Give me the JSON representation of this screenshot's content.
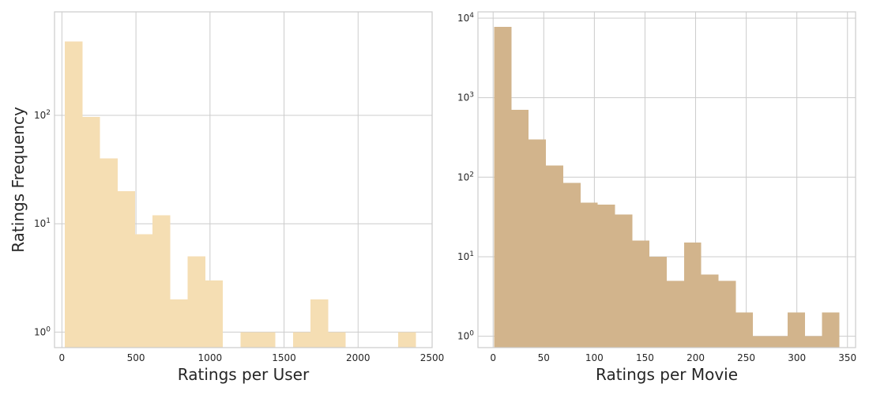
{
  "chart_data": [
    {
      "type": "bar",
      "subtype": "histogram",
      "xlabel": "Ratings per User",
      "ylabel": "Ratings Frequency",
      "yscale": "log",
      "xlim": [
        -50,
        2500
      ],
      "ylim": [
        0.72,
        900
      ],
      "grid": true,
      "color": "#f5deb3",
      "xticks": [
        0,
        500,
        1000,
        1500,
        2000,
        2500
      ],
      "yticks": [
        {
          "value": 1,
          "label_base": "10",
          "label_exp": "0"
        },
        {
          "value": 10,
          "label_base": "10",
          "label_exp": "1"
        },
        {
          "value": 100,
          "label_base": "10",
          "label_exp": "2"
        }
      ],
      "bins": [
        {
          "x0": 20,
          "x1": 138.5,
          "count": 480
        },
        {
          "x0": 138.5,
          "x1": 257,
          "count": 97
        },
        {
          "x0": 257,
          "x1": 375.5,
          "count": 40
        },
        {
          "x0": 375.5,
          "x1": 494,
          "count": 20
        },
        {
          "x0": 494,
          "x1": 612.5,
          "count": 8
        },
        {
          "x0": 612.5,
          "x1": 731,
          "count": 12
        },
        {
          "x0": 731,
          "x1": 849.5,
          "count": 2
        },
        {
          "x0": 849.5,
          "x1": 968,
          "count": 5
        },
        {
          "x0": 968,
          "x1": 1086.5,
          "count": 3
        },
        {
          "x0": 1086.5,
          "x1": 1205,
          "count": 0
        },
        {
          "x0": 1205,
          "x1": 1323.5,
          "count": 1
        },
        {
          "x0": 1323.5,
          "x1": 1442,
          "count": 1
        },
        {
          "x0": 1442,
          "x1": 1560.5,
          "count": 0
        },
        {
          "x0": 1560.5,
          "x1": 1679,
          "count": 1
        },
        {
          "x0": 1679,
          "x1": 1797.5,
          "count": 2
        },
        {
          "x0": 1797.5,
          "x1": 1916,
          "count": 1
        },
        {
          "x0": 1916,
          "x1": 2034.5,
          "count": 0
        },
        {
          "x0": 2034.5,
          "x1": 2153,
          "count": 0
        },
        {
          "x0": 2153,
          "x1": 2271.5,
          "count": 0
        },
        {
          "x0": 2271.5,
          "x1": 2390,
          "count": 1
        }
      ]
    },
    {
      "type": "bar",
      "subtype": "histogram",
      "xlabel": "Ratings per Movie",
      "ylabel": "",
      "yscale": "log",
      "xlim": [
        -15,
        358
      ],
      "ylim": [
        0.72,
        12000
      ],
      "grid": true,
      "color": "#d2b48c",
      "xticks": [
        0,
        50,
        100,
        150,
        200,
        250,
        300,
        350
      ],
      "yticks": [
        {
          "value": 1,
          "label_base": "10",
          "label_exp": "0"
        },
        {
          "value": 10,
          "label_base": "10",
          "label_exp": "1"
        },
        {
          "value": 100,
          "label_base": "10",
          "label_exp": "2"
        },
        {
          "value": 1000,
          "label_base": "10",
          "label_exp": "3"
        },
        {
          "value": 10000,
          "label_base": "10",
          "label_exp": "4"
        }
      ],
      "bins": [
        {
          "x0": 1,
          "x1": 18.05,
          "count": 7800
        },
        {
          "x0": 18.05,
          "x1": 35.1,
          "count": 700
        },
        {
          "x0": 35.1,
          "x1": 52.15,
          "count": 300
        },
        {
          "x0": 52.15,
          "x1": 69.2,
          "count": 140
        },
        {
          "x0": 69.2,
          "x1": 86.25,
          "count": 85
        },
        {
          "x0": 86.25,
          "x1": 103.3,
          "count": 48
        },
        {
          "x0": 103.3,
          "x1": 120.35,
          "count": 45
        },
        {
          "x0": 120.35,
          "x1": 137.4,
          "count": 34
        },
        {
          "x0": 137.4,
          "x1": 154.45,
          "count": 16
        },
        {
          "x0": 154.45,
          "x1": 171.5,
          "count": 10
        },
        {
          "x0": 171.5,
          "x1": 188.55,
          "count": 5
        },
        {
          "x0": 188.55,
          "x1": 205.6,
          "count": 15
        },
        {
          "x0": 205.6,
          "x1": 222.65,
          "count": 6
        },
        {
          "x0": 222.65,
          "x1": 239.7,
          "count": 5
        },
        {
          "x0": 239.7,
          "x1": 256.75,
          "count": 2
        },
        {
          "x0": 256.75,
          "x1": 273.8,
          "count": 1
        },
        {
          "x0": 273.8,
          "x1": 290.85,
          "count": 1
        },
        {
          "x0": 290.85,
          "x1": 307.9,
          "count": 2
        },
        {
          "x0": 307.9,
          "x1": 324.95,
          "count": 1
        },
        {
          "x0": 324.95,
          "x1": 342,
          "count": 2
        }
      ]
    }
  ]
}
